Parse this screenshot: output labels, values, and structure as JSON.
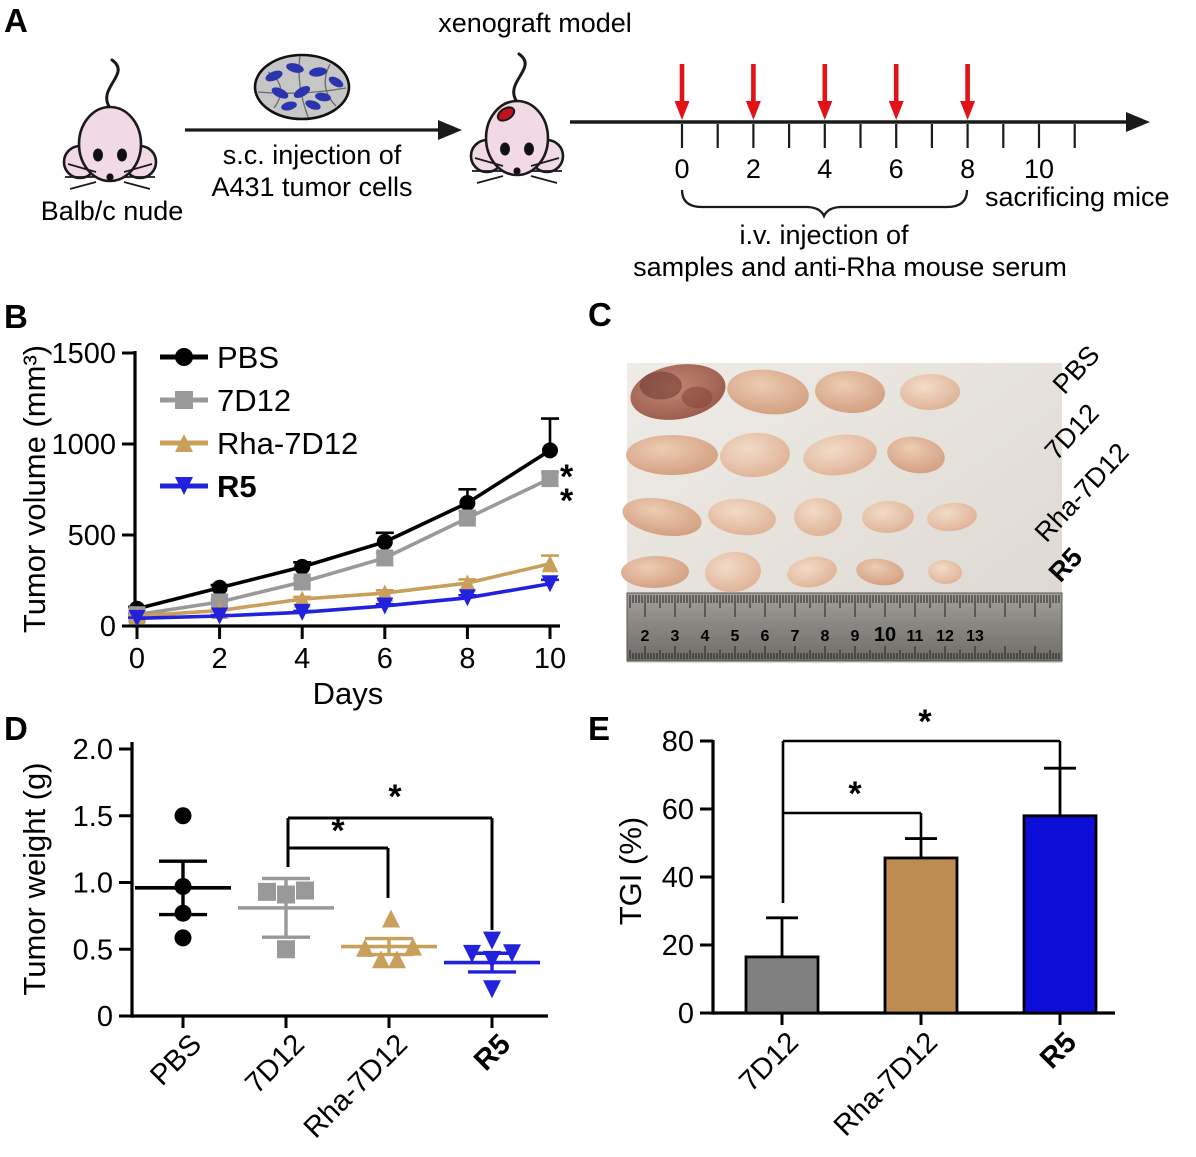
{
  "figure": {
    "background": "#ffffff",
    "panel_labels": {
      "a": "A",
      "b": "B",
      "c": "C",
      "d": "D",
      "e": "E"
    }
  },
  "panelA": {
    "title": "xenograft model",
    "start_label": "Balb/c nude",
    "arrow_caption": [
      "s.c. injection of",
      "A431 tumor cells"
    ],
    "timeline": {
      "tick_labels": [
        "0",
        "2",
        "4",
        "6",
        "8",
        "10"
      ],
      "labeled_days": [
        0,
        2,
        4,
        6,
        8,
        10
      ],
      "injection_days": [
        0,
        2,
        4,
        6,
        8
      ],
      "n_ticks": 12
    },
    "brace_caption": [
      "i.v. injection of",
      "samples and anti-Rha mouse serum"
    ],
    "end_label": "sacrificing mice",
    "colors": {
      "injection_arrow": "#e11218",
      "mouse_body": "#f2d9e6",
      "mouse_outline": "#1a1a1a",
      "cell_cytoplasm": "#c6c6c6",
      "cell_nucleus": "#2a35ad",
      "tumor_spot": "#c1121c"
    }
  },
  "panelC": {
    "row_labels": [
      {
        "text": "PBS",
        "bold": false
      },
      {
        "text": "7D12",
        "bold": false
      },
      {
        "text": "Rha-7D12",
        "bold": false
      },
      {
        "text": "R5",
        "bold": true
      }
    ],
    "rows": [
      {
        "y": 392,
        "tumors": [
          [
            678,
            96,
            54,
            2
          ],
          [
            768,
            82,
            44,
            1
          ],
          [
            850,
            70,
            42,
            1
          ],
          [
            930,
            60,
            36,
            0
          ]
        ]
      },
      {
        "y": 455,
        "tumors": [
          [
            672,
            92,
            40,
            1
          ],
          [
            755,
            70,
            44,
            0
          ],
          [
            840,
            74,
            40,
            0
          ],
          [
            916,
            58,
            36,
            1
          ]
        ]
      },
      {
        "y": 517,
        "tumors": [
          [
            662,
            80,
            36,
            1
          ],
          [
            742,
            68,
            36,
            0
          ],
          [
            818,
            48,
            38,
            0
          ],
          [
            888,
            52,
            32,
            0
          ],
          [
            952,
            50,
            28,
            0
          ]
        ]
      },
      {
        "y": 572,
        "tumors": [
          [
            655,
            68,
            32,
            1
          ],
          [
            733,
            56,
            40,
            0
          ],
          [
            812,
            50,
            30,
            0
          ],
          [
            880,
            48,
            26,
            1
          ],
          [
            945,
            34,
            24,
            0
          ]
        ]
      }
    ],
    "tumor_shades": [
      "light",
      "mid",
      "dark"
    ],
    "ruler_numbers": [
      "2",
      "3",
      "4",
      "5",
      "6",
      "7",
      "8",
      "9",
      "10",
      "11",
      "12",
      "13"
    ]
  },
  "chart_data": [
    {
      "id": "B",
      "type": "line",
      "xlabel": "Days",
      "ylabel": "Tumor volume (mm³)",
      "x": [
        0,
        2,
        4,
        6,
        8,
        10
      ],
      "xticklabels": [
        "0",
        "2",
        "4",
        "6",
        "8",
        "10"
      ],
      "ylim": [
        0,
        1500
      ],
      "yticks": [
        0,
        500,
        1000,
        1500
      ],
      "significance": "**",
      "series": [
        {
          "name": "PBS",
          "color": "#000000",
          "marker": "circle",
          "bold": false,
          "values": [
            95,
            210,
            325,
            462,
            676,
            965
          ],
          "sem": [
            10,
            15,
            25,
            50,
            75,
            175
          ]
        },
        {
          "name": "7D12",
          "color": "#999999",
          "marker": "square",
          "bold": false,
          "values": [
            62,
            132,
            242,
            374,
            593,
            810
          ],
          "sem": [
            8,
            12,
            20,
            28,
            38,
            35
          ]
        },
        {
          "name": "Rha-7D12",
          "color": "#c8a05c",
          "marker": "triangle-up",
          "bold": false,
          "values": [
            55,
            85,
            148,
            181,
            236,
            342
          ],
          "sem": [
            5,
            8,
            12,
            15,
            20,
            45
          ]
        },
        {
          "name": "R5",
          "color": "#2222dc",
          "marker": "triangle-down",
          "bold": true,
          "values": [
            42,
            55,
            75,
            110,
            155,
            232
          ],
          "sem": [
            4,
            5,
            8,
            10,
            14,
            22
          ]
        }
      ]
    },
    {
      "id": "D",
      "type": "scatter",
      "ylabel": "Tumor weight (g)",
      "ylim": [
        0,
        2
      ],
      "ytick_labels": [
        "0",
        "0.5",
        "1.0",
        "1.5",
        "2.0"
      ],
      "ytick_values": [
        0,
        0.5,
        1.0,
        1.5,
        2.0
      ],
      "groups": [
        {
          "name": "PBS",
          "color": "#000000",
          "marker": "circle",
          "bold": false,
          "mean": 0.96,
          "sem": 0.2,
          "points": [
            [
              0,
              1.5
            ],
            [
              0,
              0.97
            ],
            [
              0,
              0.77
            ],
            [
              0,
              0.585
            ]
          ]
        },
        {
          "name": "7D12",
          "color": "#999999",
          "marker": "square",
          "bold": false,
          "mean": 0.81,
          "sem": 0.22,
          "points": [
            [
              -19,
              0.93
            ],
            [
              0,
              0.91
            ],
            [
              19,
              0.94
            ],
            [
              0,
              0.5
            ]
          ]
        },
        {
          "name": "Rha-7D12",
          "color": "#c8a05c",
          "marker": "triangle-up",
          "bold": false,
          "mean": 0.52,
          "sem": 0.06,
          "points": [
            [
              2,
              0.73
            ],
            [
              -24,
              0.51
            ],
            [
              24,
              0.52
            ],
            [
              -8,
              0.425
            ],
            [
              8,
              0.425
            ]
          ]
        },
        {
          "name": "R5",
          "color": "#2222dc",
          "marker": "triangle-down",
          "bold": true,
          "mean": 0.4,
          "sem": 0.07,
          "points": [
            [
              0,
              0.565
            ],
            [
              -20,
              0.465
            ],
            [
              20,
              0.47
            ],
            [
              0,
              0.42
            ],
            [
              0,
              0.2
            ]
          ]
        }
      ],
      "comparisons": [
        {
          "from": "7D12",
          "to": "R5",
          "label": "*"
        },
        {
          "from": "7D12",
          "to": "Rha-7D12",
          "label": "*"
        }
      ]
    },
    {
      "id": "E",
      "type": "bar",
      "ylabel": "TGI (%)",
      "ylim": [
        0,
        80
      ],
      "yticks": [
        0,
        20,
        40,
        60,
        80
      ],
      "categories": [
        "7D12",
        "Rha-7D12",
        "R5"
      ],
      "bold": [
        false,
        false,
        true
      ],
      "values": [
        16.5,
        45.6,
        58
      ],
      "sem": [
        11.5,
        5.7,
        14
      ],
      "colors": [
        "#808080",
        "#be8c50",
        "#0d0dd8"
      ],
      "comparisons": [
        {
          "from": "7D12",
          "to": "R5",
          "label": "*"
        },
        {
          "from": "7D12",
          "to": "Rha-7D12",
          "label": "*"
        }
      ]
    }
  ]
}
